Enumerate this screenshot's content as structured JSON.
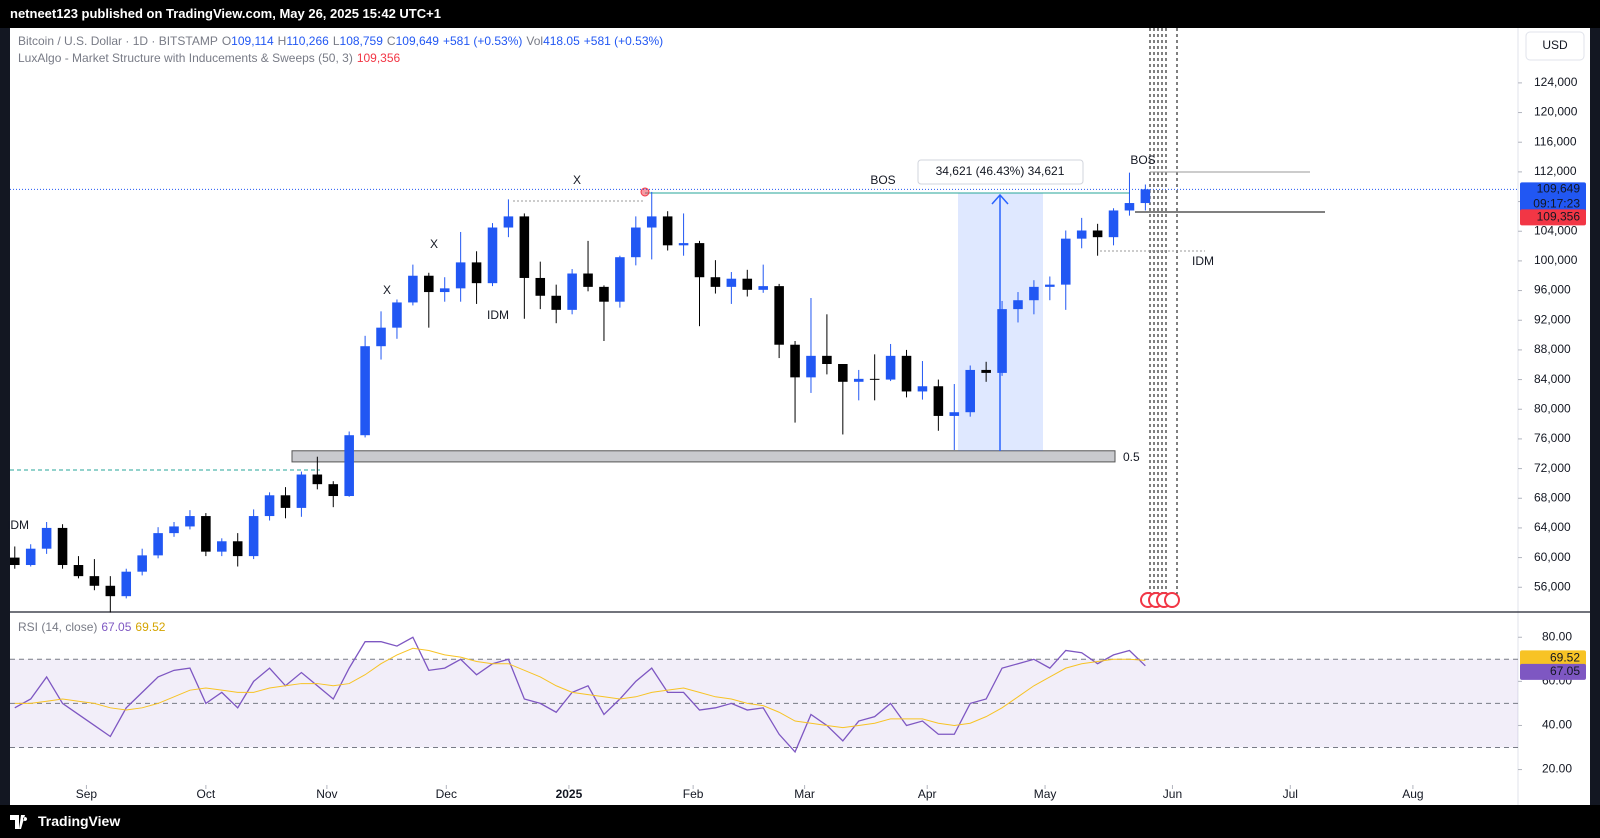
{
  "publisher": "netneet123 published on TradingView.com, May 26, 2025 15:42 UTC+1",
  "footer": "TradingView",
  "chart_data": [
    {
      "type": "candlestick",
      "title": "Bitcoin / U.S. Dollar · 1D · BITSTAMP",
      "ohlc_header": [
        "O",
        "109,114",
        "H",
        "110,266",
        "L",
        "108,759",
        "C",
        "109,649",
        "+581 (+0.53%)",
        "Vol",
        "418.05",
        "+581 (+0.53%)"
      ],
      "indicator": "LuxAlgo - Market Structure with Inducements & Sweeps (50, 3)",
      "indicator_value": "109,356",
      "currency": "USD",
      "price_tag": {
        "value": 109649,
        "label": "109,649"
      },
      "countdown": "09:17:23",
      "indicator_tag": {
        "value": 109356,
        "label": "109,356"
      },
      "measure_label": "34,621 (46.43%) 34,621",
      "annotations": [
        "X",
        "X",
        "X",
        "IDM",
        "IDM",
        "IDM",
        "BOS",
        "BOS",
        "0.5"
      ],
      "up_color": "#2157f3",
      "down_color": "#000000",
      "ohlc": [
        [
          60000,
          61500,
          58500,
          59000
        ],
        [
          59000,
          61800,
          58800,
          61200
        ],
        [
          61200,
          64800,
          60500,
          64000
        ],
        [
          64000,
          64500,
          58500,
          59000
        ],
        [
          59000,
          60200,
          57200,
          57500
        ],
        [
          57500,
          59800,
          55600,
          56200
        ],
        [
          56200,
          57500,
          52600,
          54800
        ],
        [
          54800,
          58500,
          54500,
          58100
        ],
        [
          58100,
          61200,
          57600,
          60300
        ],
        [
          60300,
          64100,
          59900,
          63300
        ],
        [
          63300,
          64800,
          62800,
          64200
        ],
        [
          64200,
          66400,
          63800,
          65600
        ],
        [
          65600,
          66000,
          60200,
          60800
        ],
        [
          60800,
          62600,
          60200,
          62200
        ],
        [
          62200,
          63300,
          58800,
          60200
        ],
        [
          60200,
          66500,
          59800,
          65600
        ],
        [
          65600,
          68800,
          65000,
          68400
        ],
        [
          68400,
          69500,
          65300,
          66700
        ],
        [
          66700,
          71600,
          65500,
          71200
        ],
        [
          71200,
          73600,
          69200,
          69900
        ],
        [
          69900,
          70300,
          66800,
          68300
        ],
        [
          68300,
          77000,
          68200,
          76500
        ],
        [
          76500,
          89900,
          76200,
          88500
        ],
        [
          88500,
          93200,
          86700,
          91000
        ],
        [
          91000,
          94800,
          89500,
          94400
        ],
        [
          94400,
          99500,
          94000,
          98000
        ],
        [
          98000,
          98400,
          91000,
          95800
        ],
        [
          95800,
          97800,
          94500,
          96300
        ],
        [
          96300,
          103900,
          94500,
          99800
        ],
        [
          99800,
          101300,
          94200,
          97000
        ],
        [
          97000,
          105100,
          96600,
          104500
        ],
        [
          104500,
          108300,
          103200,
          106000
        ],
        [
          106000,
          106400,
          92200,
          97700
        ],
        [
          97700,
          99900,
          93500,
          95300
        ],
        [
          95300,
          96800,
          91600,
          93400
        ],
        [
          93400,
          98900,
          92800,
          98300
        ],
        [
          98300,
          102700,
          95900,
          96500
        ],
        [
          96500,
          96700,
          89200,
          94500
        ],
        [
          94500,
          100700,
          93700,
          100500
        ],
        [
          100500,
          106000,
          99400,
          104500
        ],
        [
          104500,
          109300,
          100200,
          106000
        ],
        [
          106000,
          106700,
          101400,
          102100
        ],
        [
          102100,
          106400,
          100700,
          102400
        ],
        [
          102400,
          102700,
          91200,
          97800
        ],
        [
          97800,
          100100,
          95600,
          96500
        ],
        [
          96500,
          98500,
          94200,
          97600
        ],
        [
          97600,
          98800,
          95200,
          96100
        ],
        [
          96100,
          99500,
          95700,
          96600
        ],
        [
          96600,
          96900,
          86900,
          88700
        ],
        [
          88700,
          89200,
          78200,
          84300
        ],
        [
          84300,
          95000,
          82200,
          87200
        ],
        [
          87200,
          92800,
          84700,
          86100
        ],
        [
          86100,
          86100,
          76600,
          83700
        ],
        [
          83700,
          85300,
          81200,
          84100
        ],
        [
          84100,
          87400,
          81200,
          84000
        ],
        [
          84000,
          88800,
          83800,
          87200
        ],
        [
          87200,
          88000,
          81600,
          82400
        ],
        [
          82400,
          86500,
          81300,
          83100
        ],
        [
          83100,
          84000,
          77100,
          79100
        ],
        [
          79100,
          83400,
          74500,
          79600
        ],
        [
          79600,
          85900,
          79000,
          85300
        ],
        [
          85300,
          86400,
          83700,
          84900
        ],
        [
          84900,
          94600,
          84500,
          93500
        ],
        [
          93500,
          95800,
          91700,
          94700
        ],
        [
          94700,
          97400,
          92800,
          96500
        ],
        [
          96500,
          97900,
          94700,
          96800
        ],
        [
          96800,
          104100,
          93400,
          103000
        ],
        [
          103000,
          105800,
          101700,
          104100
        ],
        [
          104100,
          105000,
          100700,
          103200
        ],
        [
          103200,
          107100,
          102100,
          106800
        ],
        [
          106800,
          111900,
          106100,
          107800
        ],
        [
          107800,
          110300,
          106800,
          109649
        ]
      ],
      "xlim": [
        -0.3,
        94.4
      ],
      "xticks": [
        {
          "value": 4.5,
          "label": "Sep"
        },
        {
          "value": 12.0,
          "label": "Oct"
        },
        {
          "value": 19.6,
          "label": "Nov"
        },
        {
          "value": 27.1,
          "label": "Dec"
        },
        {
          "value": 34.8,
          "label": "2025"
        },
        {
          "value": 42.6,
          "label": "Feb"
        },
        {
          "value": 49.6,
          "label": "Mar"
        },
        {
          "value": 57.3,
          "label": "Apr"
        },
        {
          "value": 64.7,
          "label": "May"
        },
        {
          "value": 72.7,
          "label": "Jun"
        },
        {
          "value": 80.1,
          "label": "Jul"
        },
        {
          "value": 87.8,
          "label": "Aug"
        }
      ],
      "ylim": [
        52800,
        131400
      ],
      "yticks": [
        {
          "value": 56000,
          "label": "56,000"
        },
        {
          "value": 60000,
          "label": "60,000"
        },
        {
          "value": 64000,
          "label": "64,000"
        },
        {
          "value": 68000,
          "label": "68,000"
        },
        {
          "value": 72000,
          "label": "72,000"
        },
        {
          "value": 76000,
          "label": "76,000"
        },
        {
          "value": 80000,
          "label": "80,000"
        },
        {
          "value": 84000,
          "label": "84,000"
        },
        {
          "value": 88000,
          "label": "88,000"
        },
        {
          "value": 92000,
          "label": "92,000"
        },
        {
          "value": 96000,
          "label": "96,000"
        },
        {
          "value": 100000,
          "label": "100,000"
        },
        {
          "value": 104000,
          "label": "104,000"
        },
        {
          "value": 108000,
          "label": "108,000"
        },
        {
          "value": 112000,
          "label": "112,000"
        },
        {
          "value": 116000,
          "label": "116,000"
        },
        {
          "value": 120000,
          "label": "120,000"
        },
        {
          "value": 124000,
          "label": "124,000"
        }
      ]
    },
    {
      "type": "line",
      "title": "RSI (14, close)",
      "series": [
        {
          "color": "#7e57c2",
          "values": [
            48,
            52,
            62,
            50,
            45,
            40,
            35,
            48,
            55,
            62,
            65,
            66,
            50,
            55,
            48,
            60,
            66,
            58,
            64,
            58,
            52,
            66,
            78,
            78,
            76,
            80,
            65,
            66,
            70,
            63,
            68,
            70,
            52,
            50,
            46,
            55,
            58,
            45,
            52,
            60,
            66,
            55,
            55,
            47,
            48,
            50,
            47,
            48,
            36,
            28,
            45,
            40,
            33,
            42,
            44,
            50,
            40,
            42,
            36,
            36,
            50,
            52,
            66,
            68,
            70,
            66,
            74,
            73,
            68,
            72,
            74,
            67.05
          ]
        },
        {
          "color": "#f7c325",
          "values": [
            50,
            50,
            51,
            52,
            51,
            50,
            48,
            47,
            48,
            50,
            53,
            56,
            57,
            56,
            55,
            55,
            57,
            58,
            59,
            59,
            58,
            59,
            63,
            68,
            72,
            75,
            74,
            72,
            71,
            69,
            68,
            68,
            65,
            62,
            58,
            55,
            54,
            53,
            52,
            53,
            55,
            56,
            57,
            55,
            53,
            52,
            50,
            49,
            46,
            42,
            41,
            40,
            39,
            40,
            41,
            43,
            43,
            43,
            41,
            40,
            41,
            44,
            48,
            53,
            58,
            62,
            66,
            68,
            69,
            70,
            70,
            69.52
          ]
        }
      ],
      "ylim": [
        13,
        91
      ],
      "yticks": [
        {
          "value": 20,
          "label": "20.00"
        },
        {
          "value": 40,
          "label": "40.00"
        },
        {
          "value": 60,
          "label": "60.00"
        },
        {
          "value": 80,
          "label": "80.00"
        }
      ]
    }
  ]
}
